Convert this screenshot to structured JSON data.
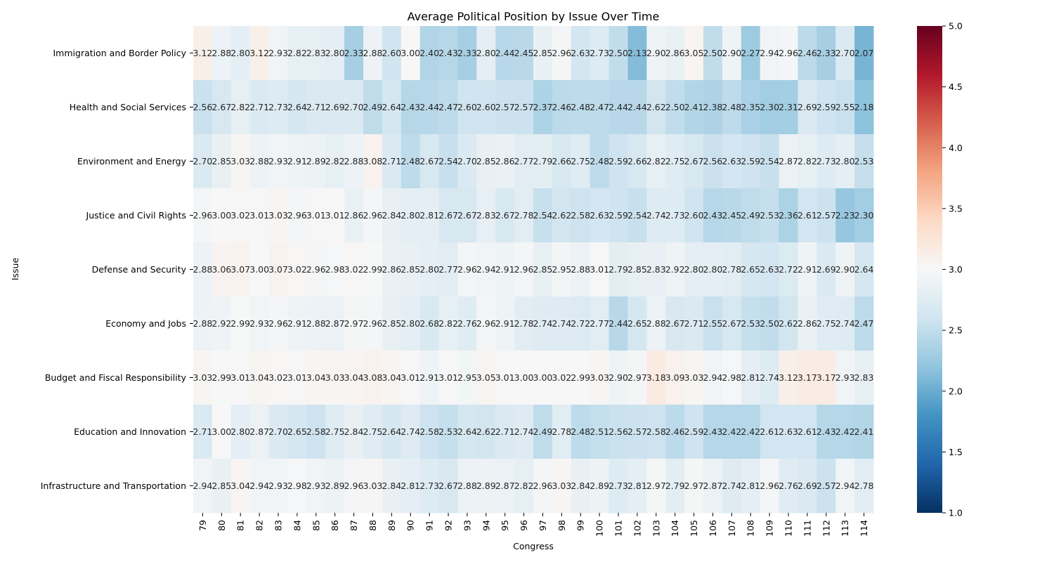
{
  "chart_data": {
    "type": "heatmap",
    "title": "Average Political Position by Issue Over Time",
    "xlabel": "Congress",
    "ylabel": "Issue",
    "x": [
      "79",
      "80",
      "81",
      "82",
      "83",
      "84",
      "85",
      "86",
      "87",
      "88",
      "89",
      "90",
      "91",
      "92",
      "93",
      "94",
      "95",
      "96",
      "97",
      "98",
      "99",
      "100",
      "101",
      "102",
      "103",
      "104",
      "105",
      "106",
      "107",
      "108",
      "109",
      "110",
      "111",
      "112",
      "113",
      "114"
    ],
    "y": [
      "Immigration and Border Policy",
      "Health and Social Services",
      "Environment and Energy",
      "Justice and Civil Rights",
      "Defense and Security",
      "Economy and Jobs",
      "Budget and Fiscal Responsibility",
      "Education and Innovation",
      "Infrastructure and Transportation"
    ],
    "values": [
      [
        3.12,
        2.88,
        2.8,
        3.12,
        2.93,
        2.82,
        2.83,
        2.8,
        2.33,
        2.88,
        2.6,
        3.0,
        2.4,
        2.43,
        2.33,
        2.8,
        2.44,
        2.45,
        2.85,
        2.96,
        2.63,
        2.73,
        2.5,
        2.13,
        2.9,
        2.86,
        3.05,
        2.5,
        2.9,
        2.27,
        2.94,
        2.96,
        2.46,
        2.33,
        2.7,
        2.07
      ],
      [
        2.56,
        2.67,
        2.82,
        2.71,
        2.73,
        2.64,
        2.71,
        2.69,
        2.7,
        2.49,
        2.64,
        2.43,
        2.44,
        2.47,
        2.6,
        2.6,
        2.57,
        2.57,
        2.37,
        2.46,
        2.48,
        2.47,
        2.44,
        2.44,
        2.62,
        2.5,
        2.41,
        2.38,
        2.48,
        2.35,
        2.3,
        2.31,
        2.69,
        2.59,
        2.55,
        2.18
      ],
      [
        2.7,
        2.85,
        3.03,
        2.88,
        2.93,
        2.91,
        2.89,
        2.82,
        2.88,
        3.08,
        2.71,
        2.48,
        2.67,
        2.54,
        2.7,
        2.85,
        2.86,
        2.77,
        2.79,
        2.66,
        2.75,
        2.48,
        2.59,
        2.66,
        2.82,
        2.75,
        2.67,
        2.56,
        2.63,
        2.59,
        2.54,
        2.87,
        2.82,
        2.73,
        2.8,
        2.53
      ],
      [
        2.96,
        3.0,
        3.02,
        3.01,
        3.03,
        2.96,
        3.01,
        3.01,
        2.86,
        2.96,
        2.84,
        2.8,
        2.81,
        2.67,
        2.67,
        2.83,
        2.67,
        2.78,
        2.54,
        2.62,
        2.58,
        2.63,
        2.59,
        2.54,
        2.74,
        2.73,
        2.6,
        2.43,
        2.45,
        2.49,
        2.53,
        2.36,
        2.61,
        2.57,
        2.23,
        2.3
      ],
      [
        2.88,
        3.06,
        3.07,
        3.0,
        3.07,
        3.02,
        2.96,
        2.98,
        3.02,
        2.99,
        2.86,
        2.85,
        2.8,
        2.77,
        2.96,
        2.94,
        2.91,
        2.96,
        2.85,
        2.95,
        2.88,
        3.01,
        2.79,
        2.85,
        2.83,
        2.92,
        2.8,
        2.8,
        2.78,
        2.65,
        2.63,
        2.72,
        2.91,
        2.69,
        2.9,
        2.64
      ],
      [
        2.88,
        2.92,
        2.99,
        2.93,
        2.96,
        2.91,
        2.88,
        2.87,
        2.97,
        2.96,
        2.85,
        2.8,
        2.68,
        2.82,
        2.76,
        2.96,
        2.91,
        2.78,
        2.74,
        2.74,
        2.72,
        2.77,
        2.44,
        2.65,
        2.88,
        2.67,
        2.71,
        2.55,
        2.67,
        2.53,
        2.5,
        2.62,
        2.86,
        2.75,
        2.74,
        2.47
      ],
      [
        3.03,
        2.99,
        3.01,
        3.04,
        3.02,
        3.01,
        3.04,
        3.03,
        3.04,
        3.08,
        3.04,
        3.01,
        2.91,
        3.01,
        2.95,
        3.05,
        3.01,
        3.0,
        3.0,
        3.02,
        2.99,
        3.03,
        2.9,
        2.97,
        3.18,
        3.09,
        3.03,
        2.94,
        2.98,
        2.81,
        2.74,
        3.12,
        3.17,
        3.17,
        2.93,
        2.83
      ],
      [
        2.71,
        3.0,
        2.8,
        2.87,
        2.7,
        2.65,
        2.58,
        2.75,
        2.84,
        2.75,
        2.64,
        2.74,
        2.58,
        2.53,
        2.64,
        2.62,
        2.71,
        2.74,
        2.49,
        2.78,
        2.48,
        2.51,
        2.56,
        2.57,
        2.58,
        2.46,
        2.59,
        2.43,
        2.42,
        2.42,
        2.61,
        2.63,
        2.61,
        2.43,
        2.42,
        2.41
      ],
      [
        2.94,
        2.85,
        3.04,
        2.94,
        2.93,
        2.98,
        2.93,
        2.89,
        2.96,
        3.03,
        2.84,
        2.81,
        2.73,
        2.67,
        2.88,
        2.89,
        2.87,
        2.82,
        2.96,
        3.03,
        2.84,
        2.89,
        2.73,
        2.81,
        2.97,
        2.79,
        2.97,
        2.87,
        2.74,
        2.81,
        2.96,
        2.76,
        2.69,
        2.57,
        2.94,
        2.78
      ]
    ],
    "value_format": "2 decimals",
    "colormap": "RdBu_r",
    "vmin": 1.0,
    "vmax": 5.0,
    "colorbar_ticks": [
      "1.0",
      "1.5",
      "2.0",
      "2.5",
      "3.0",
      "3.5",
      "4.0",
      "4.5",
      "5.0"
    ],
    "grid": false
  }
}
